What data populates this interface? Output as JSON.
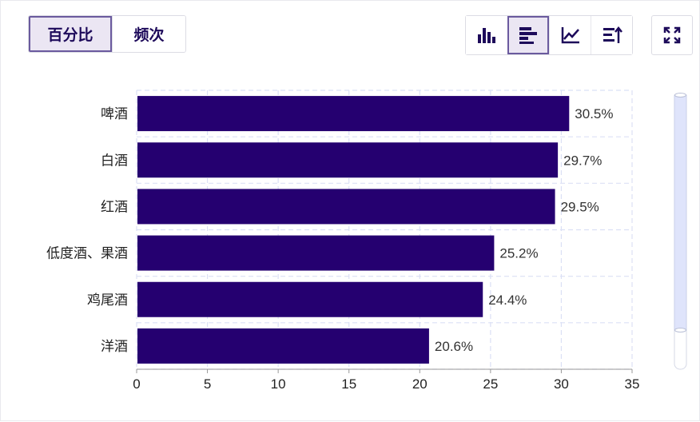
{
  "toggle": {
    "percent_label": "百分比",
    "frequency_label": "频次"
  },
  "toolbar": {
    "icons": [
      "vertical-bar-chart-icon",
      "horizontal-bar-chart-icon",
      "line-chart-icon",
      "sort-icon"
    ],
    "active": "horizontal-bar-chart-icon",
    "expand_icon": "expand-icon"
  },
  "colors": {
    "bar": "#250070",
    "grid": "#dbe0f5",
    "accent": "#1d0a5a",
    "scroll": "#dfe4fb"
  },
  "chart_data": {
    "type": "bar",
    "orientation": "horizontal",
    "categories": [
      "啤酒",
      "白酒",
      "红酒",
      "低度酒、果酒",
      "鸡尾酒",
      "洋酒"
    ],
    "values": [
      30.5,
      29.7,
      29.5,
      25.2,
      24.4,
      20.6
    ],
    "value_labels": [
      "30.5%",
      "29.7%",
      "29.5%",
      "25.2%",
      "24.4%",
      "20.6%"
    ],
    "xlim": [
      0,
      35
    ],
    "xticks": [
      "0",
      "5",
      "10",
      "15",
      "20",
      "25",
      "30",
      "35"
    ],
    "title": "",
    "xlabel": "",
    "ylabel": "",
    "grid": true
  }
}
